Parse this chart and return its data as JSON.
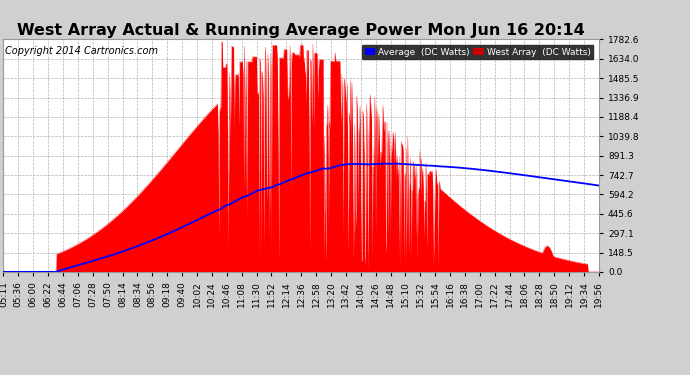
{
  "title": "West Array Actual & Running Average Power Mon Jun 16 20:14",
  "copyright": "Copyright 2014 Cartronics.com",
  "ylabel_right_ticks": [
    0.0,
    148.5,
    297.1,
    445.6,
    594.2,
    742.7,
    891.3,
    1039.8,
    1188.4,
    1336.9,
    1485.5,
    1634.0,
    1782.6
  ],
  "ymax": 1782.6,
  "background_color": "#d0d0d0",
  "plot_bg_color": "#ffffff",
  "grid_color": "#aaaaaa",
  "fill_color": "#ff0000",
  "avg_line_color": "#0000ff",
  "legend_avg_bg": "#0000ff",
  "legend_west_bg": "#cc0000",
  "title_fontsize": 11.5,
  "copyright_fontsize": 7,
  "tick_fontsize": 6.5,
  "xtick_labels": [
    "05:11",
    "05:36",
    "06:00",
    "06:22",
    "06:44",
    "07:06",
    "07:28",
    "07:50",
    "08:14",
    "08:34",
    "08:56",
    "09:18",
    "09:40",
    "10:02",
    "10:24",
    "10:46",
    "11:08",
    "11:30",
    "11:52",
    "12:14",
    "12:36",
    "12:58",
    "13:20",
    "13:42",
    "14:04",
    "14:26",
    "14:48",
    "15:10",
    "15:32",
    "15:54",
    "16:16",
    "16:38",
    "17:00",
    "17:22",
    "17:44",
    "18:06",
    "18:28",
    "18:50",
    "19:12",
    "19:34",
    "19:56"
  ]
}
